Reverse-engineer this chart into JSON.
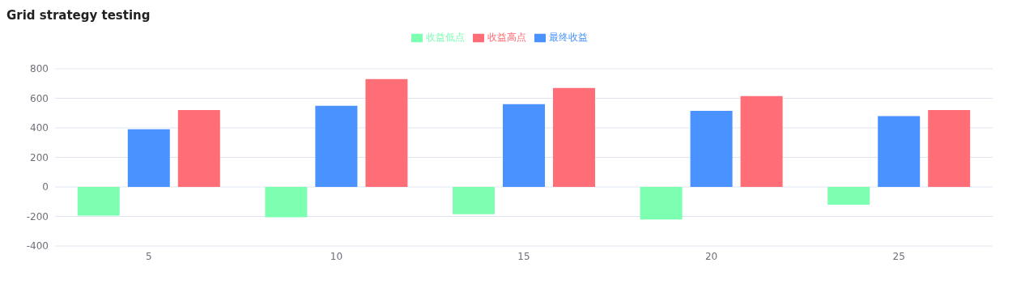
{
  "chart_data": {
    "type": "bar",
    "title": "Grid strategy testing",
    "categories": [
      "5",
      "10",
      "15",
      "20",
      "25"
    ],
    "series": [
      {
        "name": "收益低点",
        "color": "#7dffb2",
        "values": [
          -195,
          -205,
          -185,
          -220,
          -120
        ]
      },
      {
        "name": "最终收益",
        "color": "#4992ff",
        "values": [
          390,
          550,
          560,
          515,
          480
        ]
      },
      {
        "name": "收益高点",
        "color": "#ff6e76",
        "values": [
          520,
          730,
          670,
          615,
          520
        ]
      }
    ],
    "ylim": [
      -400,
      800
    ],
    "yticks": [
      -400,
      -200,
      0,
      200,
      400,
      600,
      800
    ],
    "grid": "y",
    "legend": "top"
  }
}
